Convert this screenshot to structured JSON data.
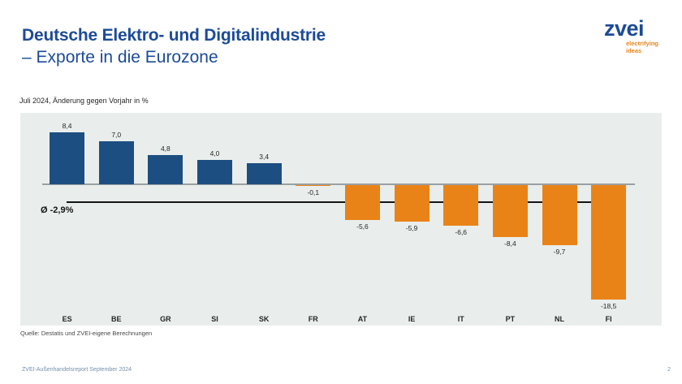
{
  "header": {
    "title_line1": "Deutsche Elektro- und Digitalindustrie",
    "title_line2": "– Exporte in die Eurozone"
  },
  "logo": {
    "wordmark": "zvei",
    "tagline_line1": "electrifying",
    "tagline_line2": "ideas"
  },
  "chart_data": {
    "type": "bar",
    "title": "Juli 2024, Änderung gegen Vorjahr in %",
    "categories": [
      "ES",
      "BE",
      "GR",
      "SI",
      "SK",
      "FR",
      "AT",
      "IE",
      "IT",
      "PT",
      "NL",
      "FI"
    ],
    "values": [
      8.4,
      7.0,
      4.8,
      4.0,
      3.4,
      -0.1,
      -5.6,
      -5.9,
      -6.6,
      -8.4,
      -9.7,
      -18.5
    ],
    "value_labels": [
      "8,4",
      "7,0",
      "4,8",
      "4,0",
      "3,4",
      "-0,1",
      "-5,6",
      "-5,9",
      "-6,6",
      "-8,4",
      "-9,7",
      "-18,5"
    ],
    "average": {
      "value": -2.9,
      "label": "Ø -2,9%"
    },
    "ylim": [
      -20.5,
      11.5
    ],
    "grid": false,
    "legend": "none",
    "value_label_position": "outside-end",
    "colors": {
      "positive_bar": "#1D4E81",
      "negative_bar": "#E98318",
      "plot_background": "#E9EEEC",
      "zero_axis": "#9AA0A3",
      "average_line": "#141414"
    }
  },
  "source": "Quelle: Destatis und ZVEI-eigene Berechnungen",
  "footer": {
    "report": "ZVEI-Außenhandelsreport September 2024",
    "page_number": "2"
  },
  "colors": {
    "title_blue": "#1C4B97",
    "tagline_orange": "#E98318",
    "footer_text": "#7490AB"
  }
}
